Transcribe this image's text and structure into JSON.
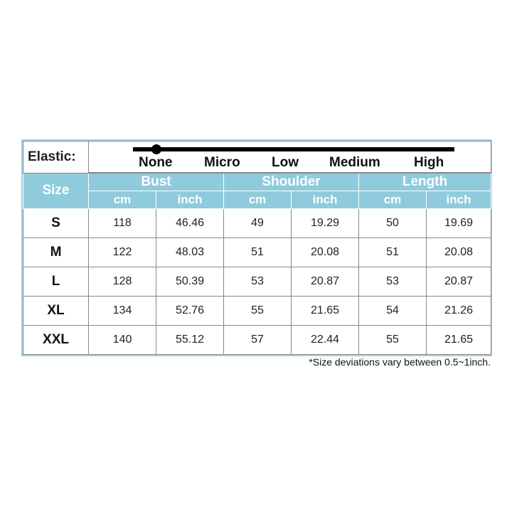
{
  "elastic": {
    "label": "Elastic:",
    "levels": [
      "None",
      "Micro",
      "Low",
      "Medium",
      "High"
    ],
    "selected": "None"
  },
  "header": {
    "size": "Size",
    "groups": [
      "Bust",
      "Shoulder",
      "Length"
    ],
    "units": [
      "cm",
      "inch",
      "cm",
      "inch",
      "cm",
      "inch"
    ]
  },
  "rows": [
    {
      "size": "S",
      "values": [
        "118",
        "46.46",
        "49",
        "19.29",
        "50",
        "19.69"
      ]
    },
    {
      "size": "M",
      "values": [
        "122",
        "48.03",
        "51",
        "20.08",
        "51",
        "20.08"
      ]
    },
    {
      "size": "L",
      "values": [
        "128",
        "50.39",
        "53",
        "20.87",
        "53",
        "20.87"
      ]
    },
    {
      "size": "XL",
      "values": [
        "134",
        "52.76",
        "55",
        "21.65",
        "54",
        "21.26"
      ]
    },
    {
      "size": "XXL",
      "values": [
        "140",
        "55.12",
        "57",
        "22.44",
        "55",
        "21.65"
      ]
    }
  ],
  "note": "*Size deviations vary between 0.5~1inch.",
  "colors": {
    "header_bg": "#8fcbdc",
    "border": "#9fd3e0"
  }
}
